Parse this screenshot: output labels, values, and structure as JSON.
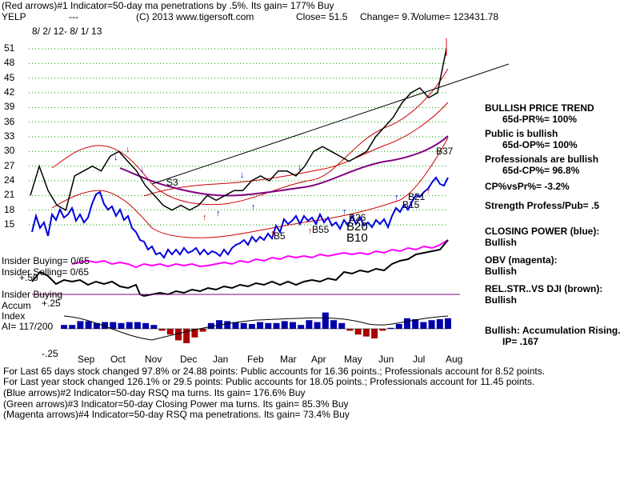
{
  "header": {
    "line1": "(Red arrows)#1 Indicator=50-day ma penetrations by .5%. Its gain= 177% Buy",
    "ticker": "YELP",
    "dashes": "---",
    "copyright": "(C) 2013 www.tigersoft.com",
    "close": "Close=  51.5",
    "change": "Change= 9.7",
    "volume": "Volume= 123431.78",
    "date_range": "8/ 2/ 12- 8/ 1/ 13"
  },
  "side_panel": [
    {
      "title": "BULLISH PRICE TREND",
      "detail": "65d-PR%= 100%"
    },
    {
      "title": "Public is bullish",
      "detail": "65d-OP%= 100%"
    },
    {
      "title": "Professionals are bullish",
      "detail": "65d-CP%= 96.8%"
    },
    {
      "title": "CP%vsPr%= -3.2%",
      "detail": ""
    },
    {
      "title": "Strength Profess/Pub= .5",
      "detail": ""
    },
    {
      "title": "CLOSING POWER (blue):",
      "detail": "Bullish"
    },
    {
      "title": "OBV (magenta):",
      "detail": "Bullish"
    },
    {
      "title": "REL.STR..VS DJI (brown):",
      "detail": "Bullish"
    },
    {
      "title": "Bullish: Accumulation Rising.",
      "detail": "IP= .167"
    }
  ],
  "labels": {
    "insider_buying": "Insider Buying= 0/65",
    "insider_selling": "Insider Selling= 0/65",
    "insider_buying2": "Insider Buying",
    "accum": "Accum",
    "index": "Index",
    "ai": "AI= 117/200",
    "plus25": "+.25",
    "plus50": "+.50",
    "minus25": "-.25",
    "s3": "S3",
    "b37": "B37",
    "b5": "B5",
    "b55": "B55",
    "b26": "B26",
    "b20": "B20",
    "b10": "B10",
    "b15": "B15",
    "b5b": "B5",
    "b21": "B21"
  },
  "footer": [
    "For Last 65 days stock changed  97.8% or  24.88 points:  Public accounts for  16.36 points.;  Professionals account for  8.52 points.",
    "For Last year stock changed  126.1% or  29.5 points:  Public accounts for  18.05 points.;  Professionals account for  11.45 points.",
    "(Blue arrows)#2 Indicator=50-day RSQ ma turns. Its gain= 176.6% Buy",
    "(Green arrows)#3 Indicator=50-day Closing Power ma turns. Its gain= 85.3% Buy",
    "(Magenta arrows)#4 Indicator=50-day RSQ ma penetrations. Its gain= 73.4% Buy"
  ],
  "colors": {
    "price": "#000000",
    "band": "#cc0000",
    "ma": "#800080",
    "closing_power": "#0000dd",
    "obv": "#ff00ff",
    "relstr": "#000000",
    "grid": "#00aa00",
    "accum_pos": "#0000aa",
    "accum_neg": "#aa0000",
    "trendline": "#000000"
  },
  "chart_data": {
    "type": "line",
    "title": "YELP",
    "ylabel": "",
    "xlabel": "",
    "price_ticks": [
      51,
      48,
      45,
      42,
      39,
      36,
      33,
      30,
      27,
      24,
      21,
      18,
      15
    ],
    "months": [
      "Sep",
      "Oct",
      "Nov",
      "Dec",
      "Jan",
      "Feb",
      "Mar",
      "Apr",
      "May",
      "Jun",
      "Jul",
      "Aug"
    ],
    "ylim": [
      15,
      51
    ],
    "series": [
      {
        "values": [
          21,
          27,
          22,
          19,
          18,
          25,
          26,
          27,
          26,
          29,
          30,
          28,
          26,
          23,
          21,
          19,
          18,
          19,
          18,
          19,
          21,
          20,
          21,
          22,
          22,
          24,
          25,
          24,
          26,
          26,
          25,
          27,
          30,
          31,
          30,
          29,
          28,
          29,
          30,
          33,
          35,
          37,
          40,
          42,
          43,
          41,
          42,
          51
        ]
      },
      {
        "values": [
          16.5,
          18.5,
          17.5,
          20,
          21,
          21,
          21.5,
          23,
          22,
          21.5,
          21,
          19,
          17.5,
          16.5,
          17.5,
          17,
          16,
          15.5,
          16,
          17,
          15.5,
          16.5,
          16.5,
          17,
          17,
          19.5,
          20,
          19,
          21,
          20,
          18,
          19,
          18.5,
          22,
          19.5,
          20,
          19,
          21,
          19,
          19,
          21,
          21.5,
          23,
          24.5,
          25,
          22,
          24,
          24
        ]
      }
    ],
    "accum_index": [
      0.04,
      0.04,
      0.08,
      0.08,
      0.06,
      0.07,
      0.07,
      0.06,
      0.07,
      0.07,
      0.06,
      0.04,
      -0.02,
      -0.06,
      -0.12,
      -0.15,
      -0.09,
      -0.03,
      0.06,
      0.09,
      0.08,
      0.07,
      0.06,
      0.05,
      0.07,
      0.06,
      0.06,
      0.08,
      0.07,
      0.04,
      0.09,
      0.07,
      0.17,
      0.09,
      0.06,
      -0.02,
      -0.06,
      -0.08,
      -0.1,
      -0.02,
      0.01,
      0.05,
      0.11,
      0.1,
      0.07,
      0.09,
      0.1,
      0.11
    ]
  }
}
